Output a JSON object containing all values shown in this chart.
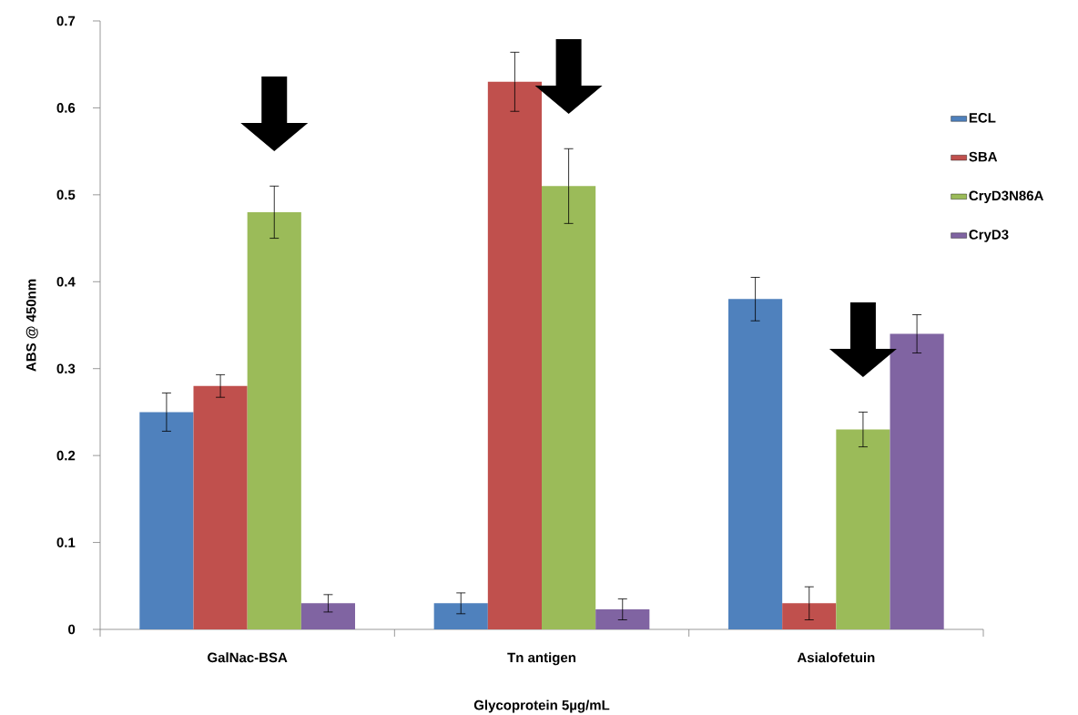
{
  "chart_data": {
    "type": "bar",
    "xlabel": "Glycoprotein 5µg/mL",
    "ylabel": "ABS @ 450nm",
    "categories": [
      "GalNac-BSA",
      "Tn antigen",
      "Asialofetuin"
    ],
    "series": [
      {
        "name": "ECL",
        "color": "#4f81bd",
        "values": [
          0.25,
          0.03,
          0.38
        ],
        "errors": [
          0.022,
          0.012,
          0.025
        ]
      },
      {
        "name": "SBA",
        "color": "#c0504d",
        "values": [
          0.28,
          0.63,
          0.03
        ],
        "errors": [
          0.013,
          0.034,
          0.019
        ]
      },
      {
        "name": "CryD3N86A",
        "color": "#9bbb59",
        "values": [
          0.48,
          0.51,
          0.23
        ],
        "errors": [
          0.03,
          0.043,
          0.02
        ]
      },
      {
        "name": "CryD3",
        "color": "#8064a2",
        "values": [
          0.03,
          0.023,
          0.34
        ],
        "errors": [
          0.01,
          0.012,
          0.022
        ]
      }
    ],
    "ylim": [
      0,
      0.7
    ],
    "yticks": [
      0,
      0.1,
      0.2,
      0.3,
      0.4,
      0.5,
      0.6,
      0.7
    ],
    "legend": "right"
  }
}
